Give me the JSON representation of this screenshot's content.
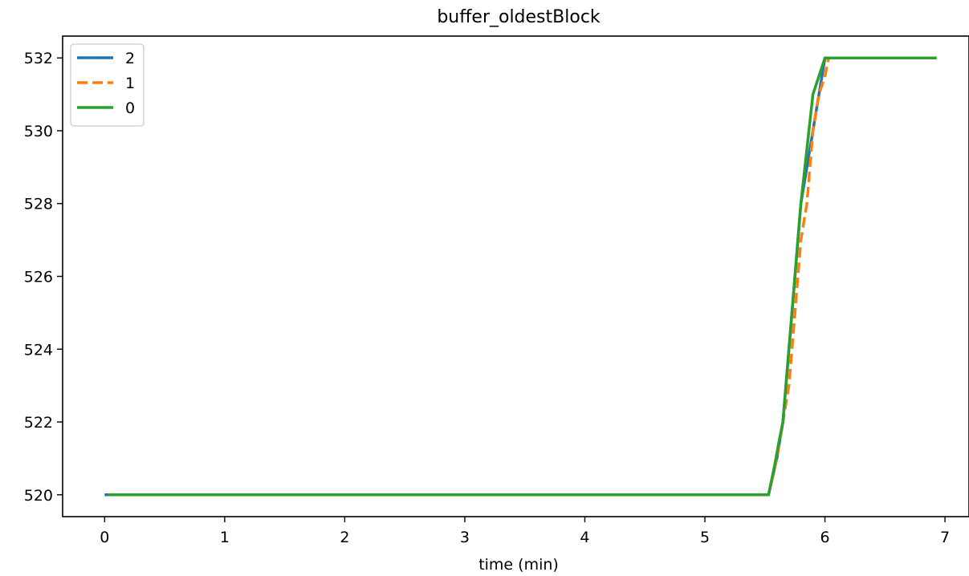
{
  "chart_data": {
    "type": "line",
    "title": "buffer_oldestBlock",
    "xlabel": "time (min)",
    "ylabel": "",
    "xlim": [
      -0.35,
      7.2
    ],
    "ylim": [
      519.4,
      532.6
    ],
    "xticks": [
      0,
      1,
      2,
      3,
      4,
      5,
      6,
      7
    ],
    "yticks": [
      520,
      522,
      524,
      526,
      528,
      530,
      532
    ],
    "grid": false,
    "legend_position": "top-left",
    "series": [
      {
        "name": "2",
        "color": "#1f77b4",
        "dash": "solid",
        "x": [
          0,
          5.5,
          5.52,
          5.53,
          5.6,
          5.65,
          5.7,
          5.75,
          5.8,
          5.85,
          5.9,
          5.95,
          6.0,
          6.05,
          6.93
        ],
        "y": [
          520,
          520,
          520,
          520,
          521,
          522,
          524,
          526,
          528,
          529,
          530,
          531,
          532,
          532,
          532
        ]
      },
      {
        "name": "1",
        "color": "#ff7f0e",
        "dash": "dashed",
        "x": [
          0.03,
          5.5,
          5.53,
          5.6,
          5.65,
          5.7,
          5.75,
          5.8,
          5.85,
          5.9,
          5.95,
          6.0,
          6.03,
          6.05,
          6.93
        ],
        "y": [
          520,
          520,
          520,
          521,
          522,
          523,
          525,
          527,
          528,
          530,
          531,
          531.5,
          532,
          532,
          532
        ]
      },
      {
        "name": "0",
        "color": "#2ca02c",
        "dash": "solid",
        "x": [
          0.03,
          5.45,
          5.53,
          5.58,
          5.62,
          5.65,
          5.7,
          5.75,
          5.8,
          5.85,
          5.9,
          5.95,
          6.0,
          6.03,
          6.05,
          6.93
        ],
        "y": [
          520,
          520,
          520,
          520.8,
          521.5,
          522,
          524,
          526,
          528,
          529.5,
          531,
          531.5,
          532,
          532,
          532,
          532
        ]
      }
    ]
  }
}
